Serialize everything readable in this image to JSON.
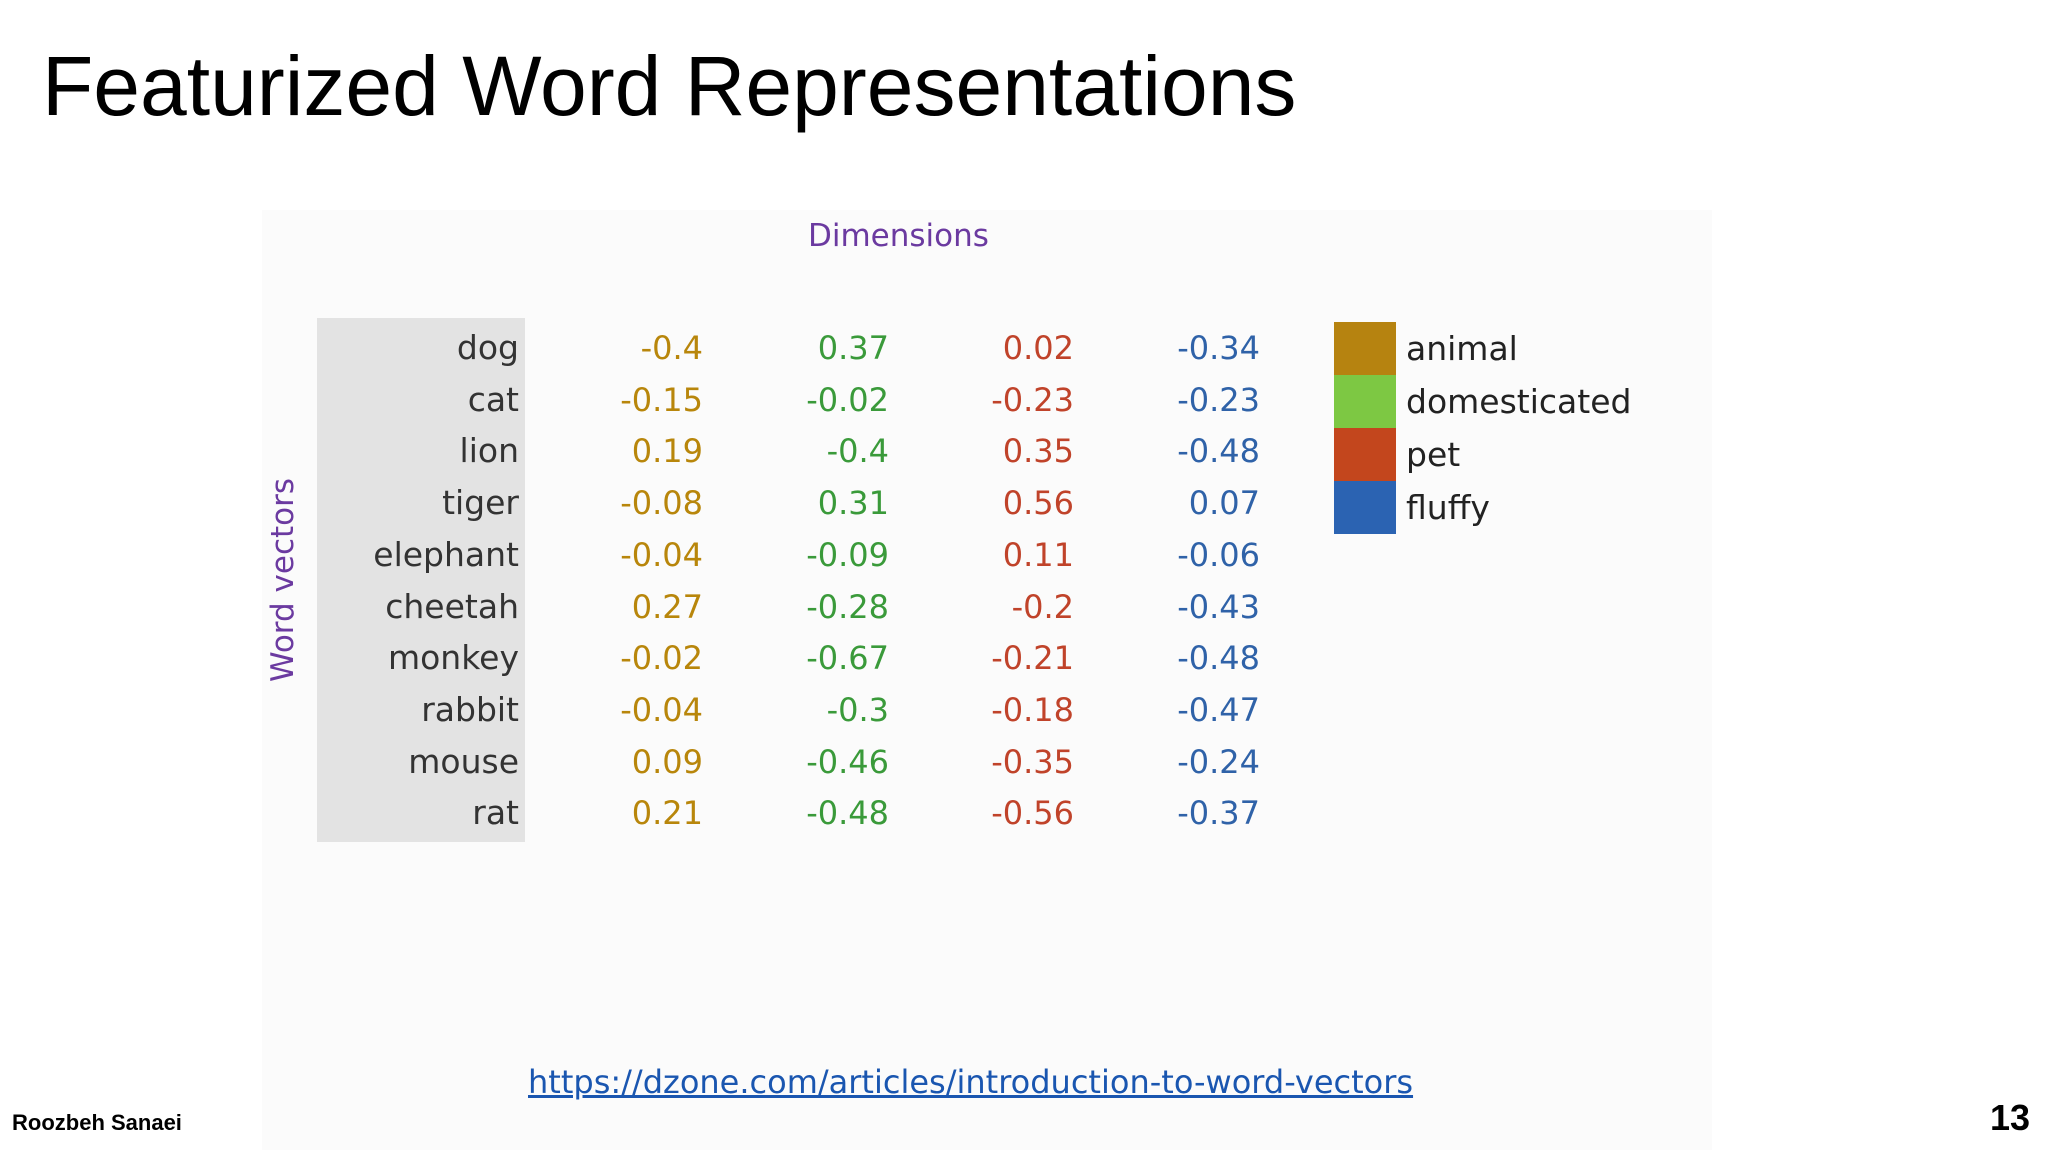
{
  "slide": {
    "title": "Featurized Word Representations",
    "author": "Roozbeh Sanaei",
    "page_number": "13"
  },
  "figure": {
    "dimensions_label": "Dimensions",
    "word_vectors_label": "Word vectors",
    "colors": {
      "animal": "#b8860b",
      "domesticated": "#3a9a3a",
      "pet": "#c0432a",
      "fluffy": "#2f62a8",
      "word_column_bg": "#e3e3e3"
    },
    "rows": [
      {
        "word": "dog",
        "values": [
          "-0.4",
          "0.37",
          "0.02",
          "-0.34"
        ]
      },
      {
        "word": "cat",
        "values": [
          "-0.15",
          "-0.02",
          "-0.23",
          "-0.23"
        ]
      },
      {
        "word": "lion",
        "values": [
          "0.19",
          "-0.4",
          "0.35",
          "-0.48"
        ]
      },
      {
        "word": "tiger",
        "values": [
          "-0.08",
          "0.31",
          "0.56",
          "0.07"
        ]
      },
      {
        "word": "elephant",
        "values": [
          "-0.04",
          "-0.09",
          "0.11",
          "-0.06"
        ]
      },
      {
        "word": "cheetah",
        "values": [
          "0.27",
          "-0.28",
          "-0.2",
          "-0.43"
        ]
      },
      {
        "word": "monkey",
        "values": [
          "-0.02",
          "-0.67",
          "-0.21",
          "-0.48"
        ]
      },
      {
        "word": "rabbit",
        "values": [
          "-0.04",
          "-0.3",
          "-0.18",
          "-0.47"
        ]
      },
      {
        "word": "mouse",
        "values": [
          "0.09",
          "-0.46",
          "-0.35",
          "-0.24"
        ]
      },
      {
        "word": "rat",
        "values": [
          "0.21",
          "-0.48",
          "-0.56",
          "-0.37"
        ]
      }
    ],
    "legend": [
      {
        "label": "animal",
        "color": "#b68310"
      },
      {
        "label": "domesticated",
        "color": "#7dc843"
      },
      {
        "label": "pet",
        "color": "#c3461d"
      },
      {
        "label": "fluffy",
        "color": "#2b63b2"
      }
    ]
  },
  "source_link": "https://dzone.com/articles/introduction-to-word-vectors"
}
